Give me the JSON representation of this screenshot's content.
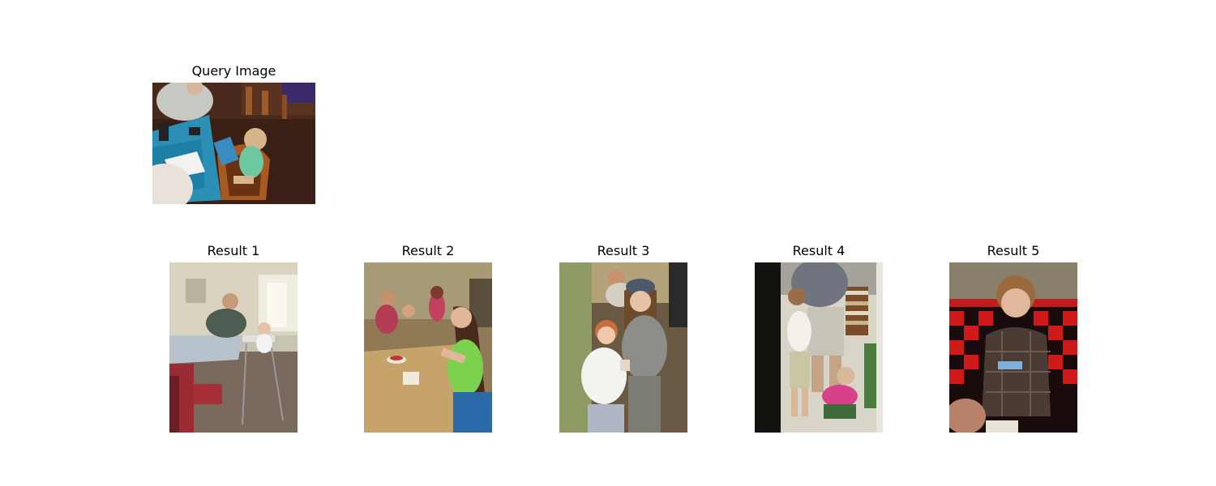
{
  "query": {
    "title": "Query Image"
  },
  "results": [
    {
      "title": "Result 1"
    },
    {
      "title": "Result 2"
    },
    {
      "title": "Result 3"
    },
    {
      "title": "Result 4"
    },
    {
      "title": "Result 5"
    }
  ]
}
